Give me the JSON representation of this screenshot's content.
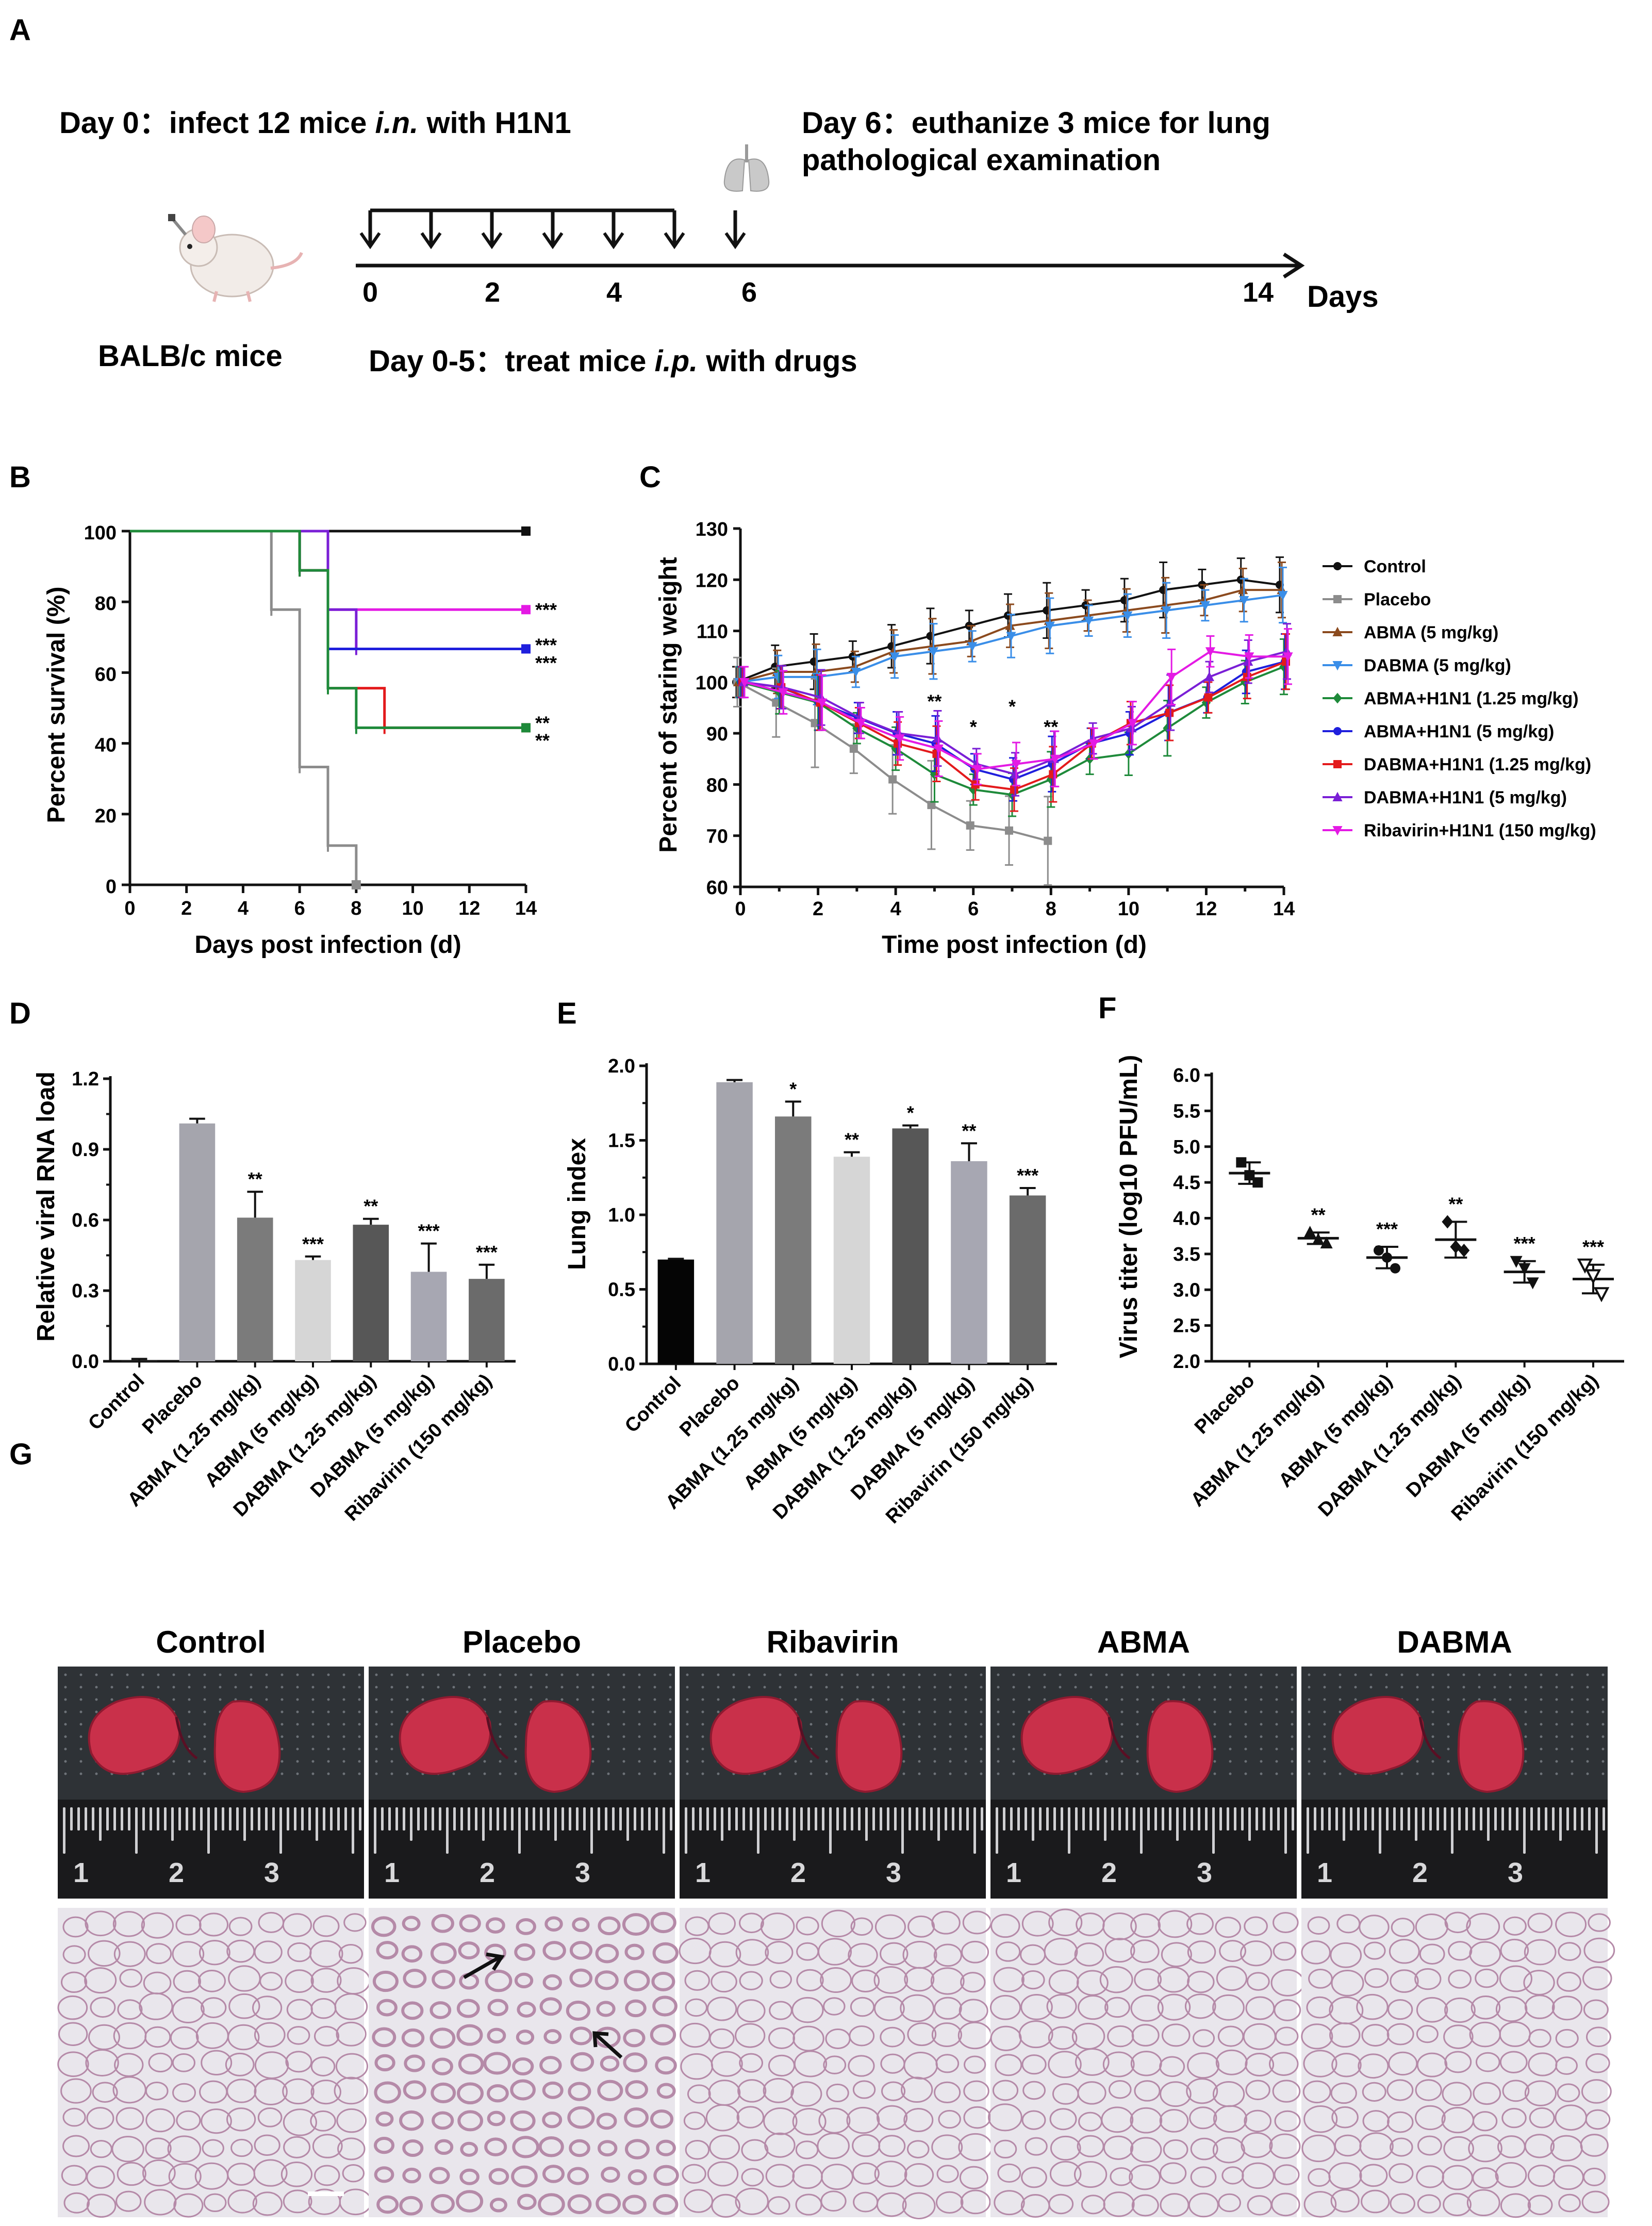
{
  "figure": {
    "panel_labels": [
      "A",
      "B",
      "C",
      "D",
      "E",
      "F",
      "G"
    ]
  },
  "panelA": {
    "day0_text": "Day 0：infect 12 mice",
    "day0_route": "i.n.",
    "day0_tail": "with H1N1",
    "day6_line1": "Day 6：euthanize 3 mice for lung",
    "day6_line2": "pathological examination",
    "mouse_label": "BALB/c mice",
    "treat_text": "Day 0-5：treat mice",
    "treat_route": "i.p.",
    "treat_tail": "with drugs",
    "ticks": [
      "0",
      "2",
      "4",
      "6",
      "14"
    ],
    "days_label": "Days",
    "arrow_days": [
      0,
      1,
      2,
      3,
      4,
      5,
      6
    ],
    "axis_max_day": 14
  },
  "chart_data": [
    {
      "panel": "B",
      "type": "line",
      "subtype": "survival-step",
      "xlabel": "Days post infection (d)",
      "ylabel": "Percent survival (%)",
      "xlim": [
        0,
        14
      ],
      "ylim": [
        0,
        100
      ],
      "xticks": [
        "0",
        "2",
        "4",
        "6",
        "8",
        "10",
        "12",
        "14"
      ],
      "yticks": [
        "0",
        "20",
        "40",
        "60",
        "80",
        "100"
      ],
      "series": [
        {
          "name": "Control",
          "color": "#111111",
          "x": [
            0,
            14
          ],
          "y": [
            100,
            100
          ],
          "end_label": ""
        },
        {
          "name": "Placebo",
          "color": "#8c8c8c",
          "x": [
            0,
            5,
            6,
            7,
            8
          ],
          "y": [
            100,
            77.8,
            33.3,
            11.1,
            0
          ],
          "end_label": ""
        },
        {
          "name": "Ribavirin+H1N1",
          "color": "#e41ae4",
          "x": [
            0,
            7,
            14
          ],
          "y": [
            100,
            77.8,
            77.8
          ],
          "end_label": "***"
        },
        {
          "name": "DABMA+H1N1 (5 mg/kg)",
          "color": "#7a1fd6",
          "x": [
            0,
            7,
            8,
            14
          ],
          "y": [
            100,
            77.8,
            66.7,
            66.7
          ],
          "end_label": ""
        },
        {
          "name": "ABMA+H1N1 (5 mg/kg)",
          "color": "#1f1fdd",
          "x": [
            0,
            6,
            7,
            14
          ],
          "y": [
            100,
            88.9,
            66.7,
            66.7
          ],
          "end_label": "***\n***"
        },
        {
          "name": "DABMA+H1N1 (1.25 mg/kg)",
          "color": "#e31a1c",
          "x": [
            0,
            6,
            7,
            9,
            14
          ],
          "y": [
            100,
            88.9,
            55.6,
            44.4,
            44.4
          ],
          "end_label": ""
        },
        {
          "name": "ABMA+H1N1 (1.25 mg/kg)",
          "color": "#1e8a3a",
          "x": [
            0,
            6,
            7,
            8,
            14
          ],
          "y": [
            100,
            88.9,
            55.6,
            44.4,
            44.4
          ],
          "end_label": "**\n**"
        }
      ],
      "end_labels": [
        {
          "text": "***",
          "y": 78
        },
        {
          "text": "***",
          "y": 68
        },
        {
          "text": "***",
          "y": 63
        },
        {
          "text": "**",
          "y": 46
        },
        {
          "text": "**",
          "y": 41
        }
      ]
    },
    {
      "panel": "C",
      "type": "line",
      "xlabel": "Time post infection (d)",
      "ylabel": "Percent of staring weight",
      "xlim": [
        0,
        14
      ],
      "ylim": [
        60,
        130
      ],
      "xticks": [
        "0",
        "2",
        "4",
        "6",
        "8",
        "10",
        "12",
        "14"
      ],
      "yticks": [
        "60",
        "70",
        "80",
        "90",
        "100",
        "110",
        "120",
        "130"
      ],
      "series": [
        {
          "name": "Control",
          "color": "#111111",
          "marker": "circle",
          "x": [
            0,
            1,
            2,
            3,
            4,
            5,
            6,
            7,
            8,
            9,
            10,
            11,
            12,
            13,
            14
          ],
          "y": [
            100,
            103,
            104,
            105,
            107,
            109,
            111,
            113,
            114,
            115,
            116,
            118,
            119,
            120,
            119
          ]
        },
        {
          "name": "Placebo",
          "color": "#8c8c8c",
          "marker": "square",
          "x": [
            0,
            1,
            2,
            3,
            4,
            5,
            6,
            7,
            8
          ],
          "y": [
            100,
            96,
            92,
            87,
            81,
            76,
            72,
            71,
            69
          ]
        },
        {
          "name": "ABMA (5 mg/kg)",
          "color": "#8b4a1e",
          "marker": "tri-up",
          "x": [
            0,
            1,
            2,
            3,
            4,
            5,
            6,
            7,
            8,
            9,
            10,
            11,
            12,
            13,
            14
          ],
          "y": [
            100,
            102,
            102,
            103,
            106,
            107,
            108,
            111,
            112,
            113,
            114,
            115,
            116,
            118,
            118
          ]
        },
        {
          "name": "DABMA (5 mg/kg)",
          "color": "#3a8ee8",
          "marker": "tri-down",
          "x": [
            0,
            1,
            2,
            3,
            4,
            5,
            6,
            7,
            8,
            9,
            10,
            11,
            12,
            13,
            14
          ],
          "y": [
            100,
            101,
            101,
            102,
            105,
            106,
            107,
            109,
            111,
            112,
            113,
            114,
            115,
            116,
            117
          ]
        },
        {
          "name": "ABMA+H1N1 (1.25 mg/kg)",
          "color": "#1e8a3a",
          "marker": "diamond",
          "x": [
            0,
            1,
            2,
            3,
            4,
            5,
            6,
            7,
            8,
            9,
            10,
            11,
            12,
            13,
            14
          ],
          "y": [
            100,
            98,
            96,
            91,
            87,
            82,
            79,
            78,
            81,
            85,
            86,
            91,
            96,
            100,
            103
          ]
        },
        {
          "name": "ABMA+H1N1 (5 mg/kg)",
          "color": "#1f1fdd",
          "marker": "circle",
          "x": [
            0,
            1,
            2,
            3,
            4,
            5,
            6,
            7,
            8,
            9,
            10,
            11,
            12,
            13,
            14
          ],
          "y": [
            100,
            99,
            96,
            93,
            90,
            88,
            83,
            81,
            84,
            88,
            90,
            94,
            97,
            102,
            104
          ]
        },
        {
          "name": "DABMA+H1N1 (1.25 mg/kg)",
          "color": "#e31a1c",
          "marker": "square",
          "x": [
            0,
            1,
            2,
            3,
            4,
            5,
            6,
            7,
            8,
            9,
            10,
            11,
            12,
            13,
            14
          ],
          "y": [
            100,
            99,
            96,
            92,
            88,
            86,
            80,
            79,
            82,
            88,
            92,
            94,
            97,
            101,
            104
          ]
        },
        {
          "name": "DABMA+H1N1 (5 mg/kg)",
          "color": "#7a1fd6",
          "marker": "tri-up",
          "x": [
            0,
            1,
            2,
            3,
            4,
            5,
            6,
            7,
            8,
            9,
            10,
            11,
            12,
            13,
            14
          ],
          "y": [
            100,
            99,
            97,
            93,
            90,
            89,
            84,
            82,
            85,
            89,
            91,
            96,
            101,
            104,
            106
          ]
        },
        {
          "name": "Ribavirin+H1N1 (150 mg/kg)",
          "color": "#e41ae4",
          "marker": "tri-down",
          "x": [
            0,
            1,
            2,
            3,
            4,
            5,
            6,
            7,
            8,
            9,
            10,
            11,
            12,
            13,
            14
          ],
          "y": [
            100,
            98,
            96,
            92,
            89,
            87,
            83,
            84,
            85,
            88,
            92,
            101,
            106,
            105,
            105
          ]
        }
      ],
      "error": 3,
      "annotations": [
        {
          "x": 5,
          "y": 95,
          "text": "**"
        },
        {
          "x": 6,
          "y": 90,
          "text": "*"
        },
        {
          "x": 7,
          "y": 94,
          "text": "*"
        },
        {
          "x": 8,
          "y": 90,
          "text": "**"
        }
      ]
    },
    {
      "panel": "D",
      "type": "bar",
      "ylabel": "Relative viral RNA load",
      "ylim": [
        0,
        1.2
      ],
      "yticks": [
        "0.0",
        "0.3",
        "0.6",
        "0.9",
        "1.2"
      ],
      "categories": [
        "Control",
        "Placebo",
        "ABMA (1.25 mg/kg)",
        "ABMA (5 mg/kg)",
        "DABMA (1.25 mg/kg)",
        "DABMA (5 mg/kg)",
        "Ribavirin (150 mg/kg)"
      ],
      "values": [
        0.005,
        1.01,
        0.61,
        0.43,
        0.58,
        0.38,
        0.35
      ],
      "errors": [
        0.005,
        0.02,
        0.11,
        0.015,
        0.025,
        0.12,
        0.06
      ],
      "sig": [
        "",
        "",
        "**",
        "***",
        "**",
        "***",
        "***"
      ],
      "colors": [
        "#1a1a1a",
        "#a5a5ad",
        "#7b7b7b",
        "#d6d6d6",
        "#575757",
        "#a7a7b2",
        "#6b6b6b"
      ]
    },
    {
      "panel": "E",
      "type": "bar",
      "ylabel": "Lung index",
      "ylim": [
        0,
        2.0
      ],
      "yticks": [
        "0.0",
        "0.5",
        "1.0",
        "1.5",
        "2.0"
      ],
      "categories": [
        "Control",
        "Placebo",
        "ABMA (1.25 mg/kg)",
        "ABMA (5 mg/kg)",
        "DABMA (1.25 mg/kg)",
        "DABMA (5 mg/kg)",
        "Ribavirin (150 mg/kg)"
      ],
      "values": [
        0.7,
        1.89,
        1.66,
        1.39,
        1.58,
        1.36,
        1.13
      ],
      "errors": [
        0.005,
        0.015,
        0.1,
        0.03,
        0.02,
        0.12,
        0.05
      ],
      "sig": [
        "",
        "",
        "*",
        "**",
        "*",
        "**",
        "***"
      ],
      "colors": [
        "#050505",
        "#a5a5ad",
        "#7b7b7b",
        "#d6d6d6",
        "#575757",
        "#a7a7b2",
        "#6b6b6b"
      ]
    },
    {
      "panel": "F",
      "type": "scatter",
      "ylabel": "Virus titer (log10 PFU/mL)",
      "ylim": [
        2.0,
        6.0
      ],
      "yticks": [
        "2.0",
        "2.5",
        "3.0",
        "3.5",
        "4.0",
        "4.5",
        "5.0",
        "5.5",
        "6.0"
      ],
      "categories": [
        "Placebo",
        "ABMA (1.25 mg/kg)",
        "ABMA (5 mg/kg)",
        "DABMA (1.25 mg/kg)",
        "DABMA (5 mg/kg)",
        "Ribavirin (150 mg/kg)"
      ],
      "means": [
        4.63,
        3.72,
        3.45,
        3.7,
        3.25,
        3.15
      ],
      "sd": [
        0.15,
        0.08,
        0.15,
        0.25,
        0.15,
        0.2
      ],
      "points": [
        [
          4.78,
          4.6,
          4.5
        ],
        [
          3.8,
          3.7,
          3.65
        ],
        [
          3.55,
          3.45,
          3.3
        ],
        [
          3.95,
          3.6,
          3.55
        ],
        [
          3.4,
          3.3,
          3.1
        ],
        [
          3.35,
          3.2,
          2.95
        ]
      ],
      "markers": [
        "square",
        "tri-up",
        "circle",
        "diamond",
        "tri-down",
        "tri-down-open"
      ],
      "sig": [
        "",
        "**",
        "***",
        "**",
        "***",
        "***"
      ]
    }
  ],
  "panelC_legend": [
    "Control",
    "Placebo",
    "ABMA (5 mg/kg)",
    "DABMA (5 mg/kg)",
    "ABMA+H1N1 (1.25 mg/kg)",
    "ABMA+H1N1 (5 mg/kg)",
    "DABMA+H1N1 (1.25 mg/kg)",
    "DABMA+H1N1 (5 mg/kg)",
    "Ribavirin+H1N1 (150 mg/kg)"
  ],
  "panelG": {
    "titles": [
      "Control",
      "Placebo",
      "Ribavirin",
      "ABMA",
      "DABMA"
    ],
    "ruler_numbers": [
      "1",
      "2",
      "3"
    ],
    "colors": {
      "lung": "#c9304a",
      "lung_dark": "#8f1a30",
      "tissue_bg": "#e9e6ec",
      "tissue_wall": "#b58aa8",
      "mat": "#2e3236",
      "ruler": "#1a1a1c"
    }
  }
}
